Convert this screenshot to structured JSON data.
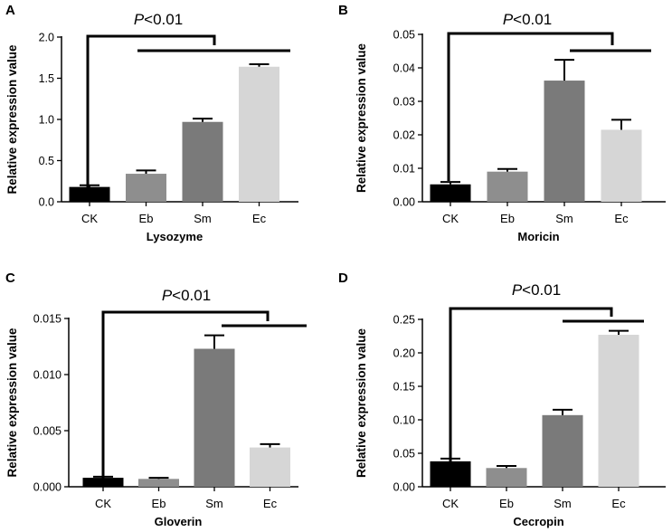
{
  "figure": {
    "background": "#ffffff",
    "bar_colors": {
      "CK": "#000000",
      "Eb": "#8e8e8e",
      "Sm": "#7a7a7a",
      "Ec": "#d6d6d6"
    }
  },
  "chart_data": [
    {
      "panel": "A",
      "type": "bar",
      "categories": [
        "CK",
        "Eb",
        "Sm",
        "Ec"
      ],
      "values": [
        0.18,
        0.34,
        0.97,
        1.64
      ],
      "errors": [
        0.02,
        0.04,
        0.04,
        0.03
      ],
      "xlabel": "Lysozyme",
      "ylabel": "Relative expression value",
      "ylim": [
        0,
        2.0
      ],
      "yticks": [
        "0.0",
        "0.5",
        "1.0",
        "1.5",
        "2.0"
      ],
      "significance": {
        "p_prefix": "P",
        "p_suffix": "<0.01",
        "from": "CK",
        "to": [
          "Sm",
          "Ec"
        ]
      }
    },
    {
      "panel": "B",
      "type": "bar",
      "categories": [
        "CK",
        "Eb",
        "Sm",
        "Ec"
      ],
      "values": [
        0.0052,
        0.009,
        0.0362,
        0.0215
      ],
      "errors": [
        0.0007,
        0.0008,
        0.0062,
        0.003
      ],
      "xlabel": "Moricin",
      "ylabel": "Relative expression value",
      "ylim": [
        0,
        0.05
      ],
      "yticks": [
        "0.00",
        "0.01",
        "0.02",
        "0.03",
        "0.04",
        "0.05"
      ],
      "significance": {
        "p_prefix": "P",
        "p_suffix": "<0.01",
        "from": "CK",
        "to": [
          "Sm",
          "Ec"
        ]
      }
    },
    {
      "panel": "C",
      "type": "bar",
      "categories": [
        "CK",
        "Eb",
        "Sm",
        "Ec"
      ],
      "values": [
        0.0008,
        0.0007,
        0.0123,
        0.0035
      ],
      "errors": [
        0.0001,
        0.0001,
        0.0012,
        0.0003
      ],
      "xlabel": "Gloverin",
      "ylabel": "Relative expression value",
      "ylim": [
        0,
        0.015
      ],
      "yticks": [
        "0.000",
        "0.005",
        "0.010",
        "0.015"
      ],
      "significance": {
        "p_prefix": "P",
        "p_suffix": "<0.01",
        "from": "CK",
        "to": [
          "Sm",
          "Ec"
        ]
      }
    },
    {
      "panel": "D",
      "type": "bar",
      "categories": [
        "CK",
        "Eb",
        "Sm",
        "Ec"
      ],
      "values": [
        0.038,
        0.028,
        0.107,
        0.227
      ],
      "errors": [
        0.004,
        0.003,
        0.008,
        0.006
      ],
      "xlabel": "Cecropin",
      "ylabel": "Relative expression value",
      "ylim": [
        0,
        0.25
      ],
      "yticks": [
        "0.00",
        "0.05",
        "0.10",
        "0.15",
        "0.20",
        "0.25"
      ],
      "significance": {
        "p_prefix": "P",
        "p_suffix": "<0.01",
        "from": "CK",
        "to": [
          "Sm",
          "Ec"
        ]
      }
    }
  ]
}
